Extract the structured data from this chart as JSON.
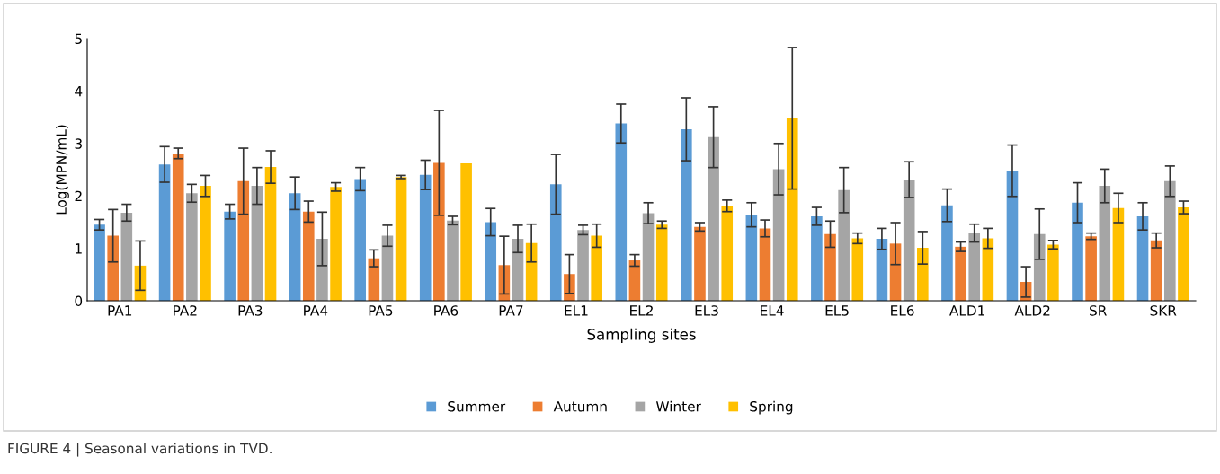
{
  "chart_data": {
    "type": "bar",
    "xlabel": "Sampling sites",
    "ylabel": "Log(MPN/mL)",
    "categories": [
      "PA1",
      "PA2",
      "PA3",
      "PA4",
      "PA5",
      "PA6",
      "PA7",
      "EL1",
      "EL2",
      "EL3",
      "EL4",
      "EL5",
      "EL6",
      "ALD1",
      "ALD2",
      "SR",
      "SKR"
    ],
    "series": [
      {
        "name": "Summer",
        "color": "#5b9bd5",
        "values": [
          1.45,
          2.6,
          1.7,
          2.05,
          2.32,
          2.4,
          1.5,
          2.22,
          3.38,
          3.27,
          1.64,
          1.61,
          1.18,
          1.82,
          2.48,
          1.87,
          1.61
        ],
        "errors": [
          0.1,
          0.34,
          0.14,
          0.31,
          0.22,
          0.28,
          0.26,
          0.57,
          0.37,
          0.6,
          0.23,
          0.17,
          0.2,
          0.31,
          0.49,
          0.38,
          0.26
        ]
      },
      {
        "name": "Autumn",
        "color": "#ed7d31",
        "values": [
          1.24,
          2.81,
          2.28,
          1.7,
          0.81,
          2.63,
          0.68,
          0.51,
          0.77,
          1.41,
          1.38,
          1.27,
          1.09,
          1.03,
          0.36,
          1.23,
          1.15
        ],
        "errors": [
          0.5,
          0.1,
          0.63,
          0.2,
          0.16,
          1.0,
          0.55,
          0.37,
          0.11,
          0.08,
          0.16,
          0.25,
          0.4,
          0.09,
          0.29,
          0.06,
          0.14
        ]
      },
      {
        "name": "Winter",
        "color": "#a5a5a5",
        "values": [
          1.68,
          2.05,
          2.19,
          1.18,
          1.24,
          1.53,
          1.18,
          1.35,
          1.67,
          3.12,
          2.51,
          2.11,
          2.31,
          1.29,
          1.27,
          2.19,
          2.28
        ],
        "errors": [
          0.16,
          0.17,
          0.35,
          0.51,
          0.2,
          0.08,
          0.26,
          0.09,
          0.2,
          0.58,
          0.49,
          0.43,
          0.34,
          0.17,
          0.48,
          0.32,
          0.29
        ]
      },
      {
        "name": "Spring",
        "color": "#ffc000",
        "values": [
          0.67,
          2.19,
          2.55,
          2.17,
          2.36,
          2.62,
          1.1,
          1.24,
          1.45,
          1.81,
          3.48,
          1.19,
          1.01,
          1.19,
          1.07,
          1.77,
          1.78
        ],
        "errors": [
          0.47,
          0.2,
          0.31,
          0.08,
          0.03,
          null,
          0.36,
          0.22,
          0.07,
          0.11,
          1.35,
          0.1,
          0.31,
          0.19,
          0.08,
          0.28,
          0.12
        ]
      }
    ],
    "ylim": [
      0,
      5
    ],
    "yticks": [
      0,
      1,
      2,
      3,
      4,
      5
    ],
    "grid": false,
    "legend": "bottom",
    "annotations": [
      "FIGURE 4 | Seasonal variations in TVD."
    ]
  }
}
